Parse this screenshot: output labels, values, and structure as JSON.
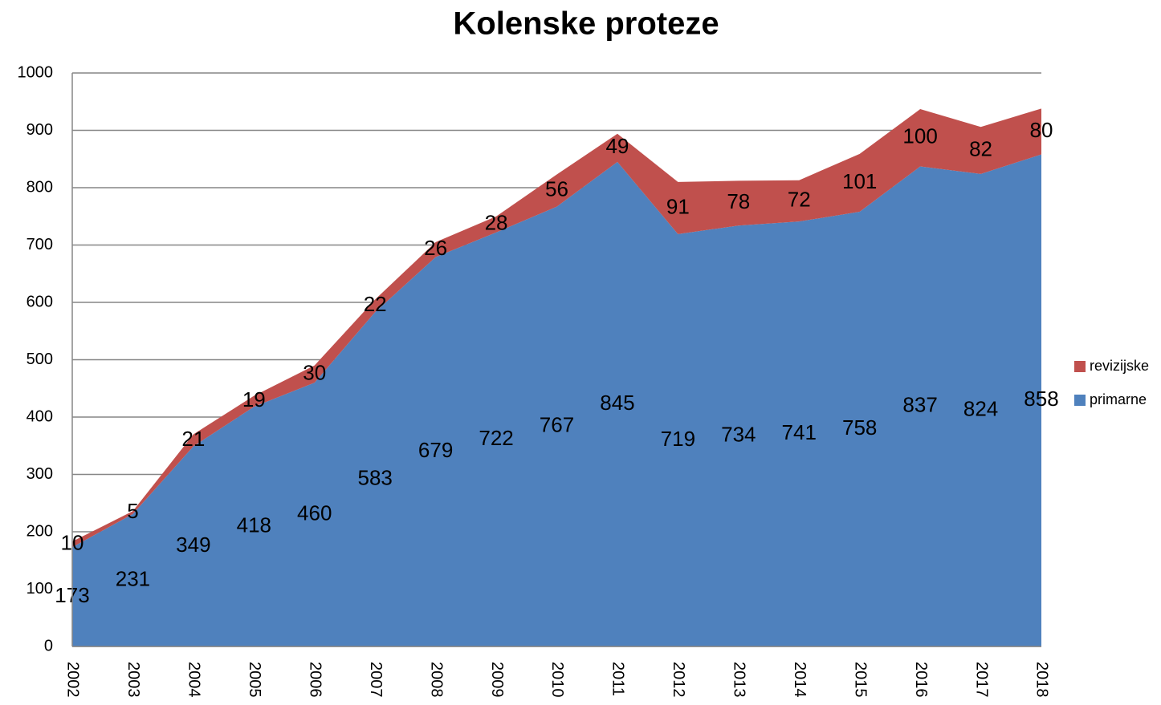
{
  "chart_data": {
    "type": "area",
    "stacked": true,
    "title": "Kolenske proteze",
    "categories": [
      "2002",
      "2003",
      "2004",
      "2005",
      "2006",
      "2007",
      "2008",
      "2009",
      "2010",
      "2011",
      "2012",
      "2013",
      "2014",
      "2015",
      "2016",
      "2017",
      "2018"
    ],
    "series": [
      {
        "name": "primarne",
        "color": "#4f81bd",
        "values": [
          173,
          231,
          349,
          418,
          460,
          583,
          679,
          722,
          767,
          845,
          719,
          734,
          741,
          758,
          837,
          824,
          858
        ]
      },
      {
        "name": "revizijske",
        "color": "#c0504d",
        "values": [
          10,
          5,
          21,
          19,
          30,
          22,
          26,
          28,
          56,
          49,
          91,
          78,
          72,
          101,
          100,
          82,
          80
        ]
      }
    ],
    "ylim": [
      0,
      1000
    ],
    "yticks": [
      0,
      100,
      200,
      300,
      400,
      500,
      600,
      700,
      800,
      900,
      1000
    ],
    "grid": true,
    "legend": "right"
  }
}
